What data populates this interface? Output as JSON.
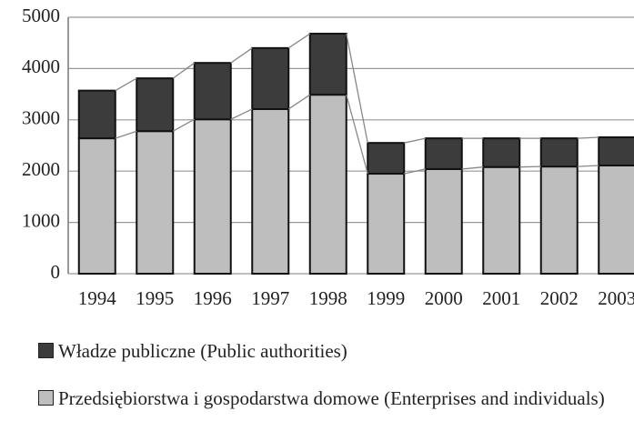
{
  "chart_data": {
    "type": "stacked_bar",
    "categories": [
      "1994",
      "1995",
      "1996",
      "1997",
      "1998",
      "1999",
      "2000",
      "2001",
      "2002",
      "2003"
    ],
    "series": [
      {
        "name": "Władze publiczne (Public authorities)",
        "color": "#3c3c3c",
        "values": [
          930,
          1030,
          1100,
          1190,
          1190,
          600,
          600,
          560,
          550,
          550
        ]
      },
      {
        "name": "Przedsiębiorstwa i gospodarstwa domowe (Enterprises and individuals)",
        "color": "#bebebe",
        "values": [
          2640,
          2780,
          3010,
          3210,
          3490,
          1950,
          2040,
          2080,
          2090,
          2110
        ]
      }
    ],
    "ylim": [
      0,
      5000
    ],
    "yticks": [
      0,
      1000,
      2000,
      3000,
      4000,
      5000
    ],
    "grid": true
  }
}
